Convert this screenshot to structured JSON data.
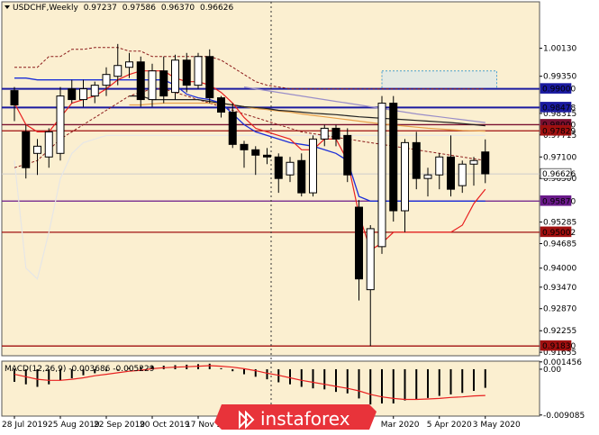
{
  "chart_data": {
    "type": "candlestick",
    "header": {
      "symbol_timeframe": "USDCHF,Weekly",
      "open": "0.97237",
      "high": "0.97586",
      "low": "0.96370",
      "close": "0.96626"
    },
    "price_axis": {
      "ylim": [
        0.91558,
        1.01426
      ],
      "ticks": [
        "1.00130",
        "0.99350",
        "0.98315",
        "0.97715",
        "0.97100",
        "0.96500",
        "0.95285",
        "0.94685",
        "0.94000",
        "0.93470",
        "0.92870",
        "0.92255",
        "0.91655"
      ],
      "tick_values": [
        1.0013,
        0.9935,
        0.98315,
        0.97715,
        0.971,
        0.965,
        0.95285,
        0.94685,
        0.94,
        0.9347,
        0.9287,
        0.92255,
        0.91655
      ]
    },
    "x_axis": {
      "labels": [
        "28 Jul 2019",
        "25 Aug 2019",
        "22 Sep 2019",
        "20 Oct 2019",
        "17 Nov 2019",
        "Mar 2020",
        "5 Apr 2020",
        "3 May 2020"
      ],
      "label_bar_index": [
        0,
        4,
        8,
        12,
        16,
        33,
        37,
        41
      ]
    },
    "candles": [
      {
        "o": 0.9895,
        "h": 0.9905,
        "l": 0.981,
        "c": 0.9855
      },
      {
        "o": 0.978,
        "h": 0.98,
        "l": 0.965,
        "c": 0.968
      },
      {
        "o": 0.972,
        "h": 0.976,
        "l": 0.966,
        "c": 0.974
      },
      {
        "o": 0.971,
        "h": 0.979,
        "l": 0.968,
        "c": 0.978
      },
      {
        "o": 0.972,
        "h": 0.9905,
        "l": 0.97,
        "c": 0.988
      },
      {
        "o": 0.99,
        "h": 0.9925,
        "l": 0.986,
        "c": 0.987
      },
      {
        "o": 0.987,
        "h": 0.9925,
        "l": 0.985,
        "c": 0.99
      },
      {
        "o": 0.988,
        "h": 0.992,
        "l": 0.986,
        "c": 0.991
      },
      {
        "o": 0.991,
        "h": 0.996,
        "l": 0.988,
        "c": 0.994
      },
      {
        "o": 0.9935,
        "h": 1.0025,
        "l": 0.991,
        "c": 0.9965
      },
      {
        "o": 0.996,
        "h": 1.0,
        "l": 0.993,
        "c": 0.9975
      },
      {
        "o": 0.9975,
        "h": 0.999,
        "l": 0.985,
        "c": 0.987
      },
      {
        "o": 0.987,
        "h": 0.997,
        "l": 0.985,
        "c": 0.995
      },
      {
        "o": 0.995,
        "h": 0.999,
        "l": 0.986,
        "c": 0.988
      },
      {
        "o": 0.989,
        "h": 0.9995,
        "l": 0.987,
        "c": 0.998
      },
      {
        "o": 0.998,
        "h": 1.0,
        "l": 0.989,
        "c": 0.991
      },
      {
        "o": 0.991,
        "h": 1.0,
        "l": 0.99,
        "c": 0.999
      },
      {
        "o": 0.999,
        "h": 1.001,
        "l": 0.986,
        "c": 0.9875
      },
      {
        "o": 0.9875,
        "h": 0.988,
        "l": 0.982,
        "c": 0.9835
      },
      {
        "o": 0.9835,
        "h": 0.986,
        "l": 0.9735,
        "c": 0.9745
      },
      {
        "o": 0.9745,
        "h": 0.9755,
        "l": 0.968,
        "c": 0.973
      },
      {
        "o": 0.973,
        "h": 0.974,
        "l": 0.966,
        "c": 0.9715
      },
      {
        "o": 0.9715,
        "h": 0.9735,
        "l": 0.969,
        "c": 0.971
      },
      {
        "o": 0.971,
        "h": 0.972,
        "l": 0.961,
        "c": 0.965
      },
      {
        "o": 0.966,
        "h": 0.971,
        "l": 0.964,
        "c": 0.9695
      },
      {
        "o": 0.97,
        "h": 0.972,
        "l": 0.96,
        "c": 0.961
      },
      {
        "o": 0.961,
        "h": 0.977,
        "l": 0.96,
        "c": 0.976
      },
      {
        "o": 0.976,
        "h": 0.98,
        "l": 0.974,
        "c": 0.979
      },
      {
        "o": 0.979,
        "h": 0.98,
        "l": 0.974,
        "c": 0.976
      },
      {
        "o": 0.977,
        "h": 0.979,
        "l": 0.964,
        "c": 0.966
      },
      {
        "o": 0.957,
        "h": 0.959,
        "l": 0.931,
        "c": 0.937
      },
      {
        "o": 0.934,
        "h": 0.952,
        "l": 0.9183,
        "c": 0.951
      },
      {
        "o": 0.946,
        "h": 0.988,
        "l": 0.944,
        "c": 0.986
      },
      {
        "o": 0.986,
        "h": 0.988,
        "l": 0.953,
        "c": 0.956
      },
      {
        "o": 0.956,
        "h": 0.976,
        "l": 0.95,
        "c": 0.975
      },
      {
        "o": 0.975,
        "h": 0.978,
        "l": 0.962,
        "c": 0.965
      },
      {
        "o": 0.965,
        "h": 0.968,
        "l": 0.96,
        "c": 0.966
      },
      {
        "o": 0.966,
        "h": 0.972,
        "l": 0.962,
        "c": 0.971
      },
      {
        "o": 0.971,
        "h": 0.977,
        "l": 0.96,
        "c": 0.962
      },
      {
        "o": 0.963,
        "h": 0.97,
        "l": 0.961,
        "c": 0.969
      },
      {
        "o": 0.969,
        "h": 0.971,
        "l": 0.963,
        "c": 0.97
      },
      {
        "o": 0.9724,
        "h": 0.9759,
        "l": 0.9637,
        "c": 0.9663
      }
    ],
    "horizontal_levels": [
      {
        "value": 0.99,
        "label": "0.99000",
        "color": "#1a1aa0"
      },
      {
        "value": 0.98478,
        "label": "0.98478",
        "color": "#1a1aa0"
      },
      {
        "value": 0.98,
        "label": "0.98000",
        "color": "#7a1030"
      },
      {
        "value": 0.97829,
        "label": "0.97829",
        "color": "#a01010"
      },
      {
        "value": 0.9587,
        "label": "0.95870",
        "color": "#6a1a8a"
      },
      {
        "value": 0.95002,
        "label": "0.95002",
        "color": "#a01010"
      },
      {
        "value": 0.9183,
        "label": "0.91830",
        "color": "#a01010"
      },
      {
        "value": 0.96626,
        "label": "0.96626",
        "color": "#000000"
      }
    ],
    "indicator_lines": {
      "blue_line": [
        0.993,
        0.993,
        0.9925,
        0.9925,
        0.9925,
        0.9925,
        0.9925,
        0.9925,
        0.9925,
        0.9925,
        0.9925,
        0.9925,
        0.9925,
        0.9925,
        0.991,
        0.9885,
        0.9875,
        0.987,
        0.986,
        0.983,
        0.98,
        0.978,
        0.977,
        0.976,
        0.975,
        0.9745,
        0.974,
        0.973,
        0.972,
        0.97,
        0.96,
        0.9587,
        0.9587,
        0.9587,
        0.9587,
        0.9587,
        0.9587,
        0.9587,
        0.9587,
        0.9587,
        0.9587,
        0.9587
      ],
      "red_line": [
        0.986,
        0.98,
        0.978,
        0.978,
        0.982,
        0.986,
        0.987,
        0.988,
        0.99,
        0.9925,
        0.994,
        0.995,
        0.995,
        0.995,
        0.993,
        0.992,
        0.992,
        0.991,
        0.989,
        0.986,
        0.982,
        0.979,
        0.978,
        0.977,
        0.976,
        0.973,
        0.973,
        0.976,
        0.976,
        0.97,
        0.955,
        0.945,
        0.947,
        0.95,
        0.95,
        0.95,
        0.95,
        0.95,
        0.95,
        0.952,
        0.958,
        0.962
      ],
      "black_line": [
        null,
        null,
        null,
        null,
        null,
        null,
        null,
        null,
        null,
        null,
        0.988,
        0.988,
        0.987,
        0.987,
        0.987,
        0.987,
        0.987,
        0.9865,
        0.986,
        0.9855,
        0.985,
        0.9848,
        0.9845,
        0.984,
        0.9838,
        0.9835,
        0.9832,
        0.983,
        0.9828,
        0.9825,
        0.9822,
        0.982,
        0.9818,
        0.9816,
        0.9814,
        0.9812,
        0.981,
        0.9808,
        0.9806,
        0.9803,
        0.98,
        0.9797
      ],
      "orange_line": [
        null,
        null,
        null,
        null,
        null,
        null,
        null,
        null,
        null,
        null,
        0.9855,
        0.9855,
        0.9858,
        0.986,
        0.986,
        0.986,
        0.986,
        0.986,
        0.9858,
        0.9855,
        0.985,
        0.9845,
        0.9842,
        0.9838,
        0.9835,
        0.983,
        0.9826,
        0.9822,
        0.9818,
        0.9814,
        0.981,
        0.9806,
        0.9802,
        0.9799,
        0.9796,
        0.9793,
        0.979,
        0.9788,
        0.9786,
        0.9784,
        0.9783,
        0.9782
      ],
      "lavender_line": [
        null,
        null,
        null,
        null,
        null,
        null,
        null,
        null,
        null,
        null,
        null,
        null,
        null,
        null,
        null,
        null,
        null,
        null,
        null,
        null,
        0.9905,
        0.99,
        0.9895,
        0.989,
        0.9885,
        0.988,
        0.9875,
        0.987,
        0.9865,
        0.986,
        0.9855,
        0.985,
        0.9845,
        0.984,
        0.9835,
        0.983,
        0.9826,
        0.9822,
        0.9818,
        0.9814,
        0.981,
        0.9806
      ],
      "gray_line": [
        0.97,
        0.94,
        0.937,
        0.95,
        0.965,
        0.972,
        0.975,
        0.976,
        0.977,
        0.977,
        0.977,
        0.977,
        0.977,
        0.977,
        0.977,
        0.977,
        0.977,
        0.977,
        0.977,
        0.977,
        0.977,
        0.977,
        0.977,
        0.977,
        0.977,
        0.977,
        0.977,
        0.977,
        0.977,
        0.977,
        0.977,
        0.977,
        0.977,
        0.977,
        0.977,
        0.977,
        0.977,
        0.977,
        0.977,
        0.977,
        0.977,
        0.977
      ],
      "dashed_channel_upper": [
        0.996,
        0.996,
        0.996,
        0.999,
        0.999,
        1.001,
        1.001,
        1.0015,
        1.0015,
        1.0015,
        1.0005,
        1.0005,
        0.999,
        0.999,
        0.999,
        0.999,
        0.999,
        0.999,
        0.998,
        0.996,
        0.994,
        0.992,
        0.991,
        0.9905,
        0.99,
        0.99,
        0.99,
        0.99,
        0.99,
        0.99,
        0.99,
        0.99,
        0.99,
        0.99,
        0.99,
        0.99,
        0.99,
        0.99,
        0.99,
        0.99,
        0.99,
        0.99
      ],
      "dashed_channel_lower": [
        0.968,
        0.969,
        0.97,
        0.973,
        0.976,
        0.978,
        0.98,
        0.982,
        0.984,
        0.986,
        0.988,
        0.989,
        0.99,
        0.99,
        0.989,
        0.988,
        0.987,
        0.986,
        0.985,
        0.984,
        0.983,
        0.982,
        0.981,
        0.98,
        0.979,
        0.978,
        0.9775,
        0.977,
        0.9765,
        0.976,
        0.9755,
        0.975,
        0.9745,
        0.974,
        0.9735,
        0.973,
        0.9725,
        0.972,
        0.9715,
        0.971,
        0.9705,
        0.97
      ],
      "dotted_cloud": {
        "from_bar": 32,
        "to_bar": 42,
        "top": 0.995,
        "bottom": 0.99
      }
    },
    "macd": {
      "label": "MACD(12,26,9) -0.003686 -0.005229",
      "ylim": [
        -0.0093,
        0.0016
      ],
      "ticks": [
        "0.001456",
        "0.00",
        "-0.009085"
      ],
      "tick_values": [
        0.001456,
        0.0,
        -0.009085
      ],
      "histogram": [
        -0.0025,
        -0.003,
        -0.0035,
        -0.003,
        -0.0022,
        -0.0018,
        -0.0012,
        -0.0008,
        -0.0004,
        -0.0002,
        0.0003,
        0.0005,
        0.0006,
        0.0007,
        0.0008,
        0.0009,
        0.001,
        0.0011,
        0.0002,
        -0.0004,
        -0.001,
        -0.0015,
        -0.002,
        -0.0026,
        -0.003,
        -0.0035,
        -0.0038,
        -0.004,
        -0.0045,
        -0.0048,
        -0.0058,
        -0.007,
        -0.0068,
        -0.0068,
        -0.0062,
        -0.006,
        -0.0057,
        -0.0053,
        -0.005,
        -0.0047,
        -0.0043,
        -0.0037
      ],
      "signal": [
        -0.001,
        -0.0015,
        -0.002,
        -0.0022,
        -0.0022,
        -0.002,
        -0.0017,
        -0.0013,
        -0.001,
        -0.0007,
        -0.0004,
        -0.0002,
        0.0001,
        0.0003,
        0.0004,
        0.0005,
        0.0006,
        0.0007,
        0.0006,
        0.0004,
        0.0001,
        -0.0003,
        -0.0008,
        -0.0012,
        -0.0017,
        -0.0022,
        -0.0026,
        -0.003,
        -0.0034,
        -0.0038,
        -0.0043,
        -0.005,
        -0.0055,
        -0.0058,
        -0.006,
        -0.006,
        -0.0059,
        -0.0058,
        -0.0056,
        -0.0055,
        -0.0053,
        -0.0052
      ]
    },
    "grid": false,
    "legend": "none"
  },
  "watermark": {
    "brand": "instaforex"
  },
  "colors": {
    "background": "#ffffff",
    "plot_bg": "#fbefd0",
    "bull_fill": "#ffffff",
    "bear_fill": "#000000",
    "candle_stroke": "#000000",
    "brand_bg": "#e8333a"
  }
}
